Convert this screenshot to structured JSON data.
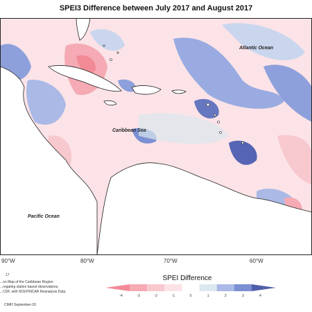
{
  "title": "SPEI3 Difference between July 2017 and August 2017",
  "map": {
    "labels": [
      {
        "name": "atlantic",
        "text": "Atlantic Ocean"
      },
      {
        "name": "caribbean",
        "text": "Caribbean Sea"
      },
      {
        "name": "pacific",
        "text": "Pacific Ocean"
      }
    ],
    "longitude_labels": [
      "90°W",
      "80°W",
      "70°W",
      "60°W"
    ]
  },
  "legend": {
    "title": "SPEI Difference",
    "ticks": [
      "-4",
      "-3",
      "-2",
      "-1",
      "0",
      "1",
      "2",
      "3",
      "4"
    ],
    "colors": [
      "#f28a96",
      "#f5aab4",
      "#f8c8cf",
      "#fbe2e6",
      "#ffffff",
      "#dbe8ee",
      "#aab9e6",
      "#7b8fd3",
      "#4f5ea8"
    ]
  },
  "credits": {
    "number": "17",
    "line1": "...on Map of the Caribbean Region.",
    "line2": "...regating station based observations,",
    "line3": "...CDF, with NCEP/NCAR Reanalysis Data.",
    "line4": "CIMH September-20"
  }
}
